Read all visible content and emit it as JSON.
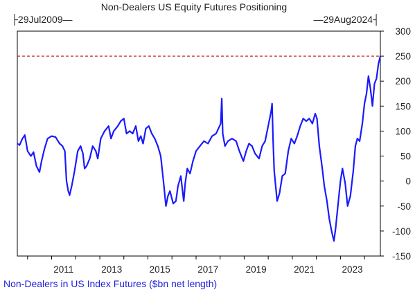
{
  "chart_data": {
    "type": "line",
    "title": "Non-Dealers US Equity Futures Positioning",
    "range_start_label": "29Jul2009",
    "range_end_label": "29Aug2024",
    "x_tick_labels": [
      "2011",
      "2013",
      "2015",
      "2017",
      "2019",
      "2021",
      "2023"
    ],
    "y_tick_labels": [
      "300",
      "250",
      "200",
      "150",
      "100",
      "50",
      "0",
      "-50",
      "-100",
      "-150"
    ],
    "ylim": [
      -150,
      300
    ],
    "xlim": [
      "2009-07-29",
      "2024-08-29"
    ],
    "grid": false,
    "reference_line": {
      "value": 250,
      "color": "#cc2222",
      "style": "dashed"
    },
    "legend_position": "bottom-left",
    "series": [
      {
        "name": "Non-Dealers in US Index Futures ($bn net length)",
        "color": "#1a1aff",
        "points": [
          [
            "2009-07-29",
            75
          ],
          [
            "2009-09-01",
            72
          ],
          [
            "2009-10-15",
            85
          ],
          [
            "2009-11-20",
            92
          ],
          [
            "2010-01-01",
            60
          ],
          [
            "2010-02-20",
            50
          ],
          [
            "2010-04-01",
            58
          ],
          [
            "2010-05-15",
            30
          ],
          [
            "2010-07-01",
            18
          ],
          [
            "2010-08-01",
            40
          ],
          [
            "2010-09-15",
            65
          ],
          [
            "2010-11-01",
            85
          ],
          [
            "2011-01-01",
            90
          ],
          [
            "2011-03-01",
            88
          ],
          [
            "2011-05-01",
            75
          ],
          [
            "2011-06-15",
            70
          ],
          [
            "2011-07-20",
            60
          ],
          [
            "2011-08-15",
            0
          ],
          [
            "2011-09-10",
            -20
          ],
          [
            "2011-10-01",
            -28
          ],
          [
            "2011-11-01",
            -10
          ],
          [
            "2011-12-15",
            20
          ],
          [
            "2012-02-01",
            60
          ],
          [
            "2012-03-15",
            70
          ],
          [
            "2012-04-20",
            55
          ],
          [
            "2012-05-15",
            25
          ],
          [
            "2012-06-15",
            30
          ],
          [
            "2012-08-01",
            45
          ],
          [
            "2012-09-15",
            70
          ],
          [
            "2012-11-01",
            60
          ],
          [
            "2012-12-01",
            45
          ],
          [
            "2013-01-15",
            85
          ],
          [
            "2013-03-15",
            100
          ],
          [
            "2013-05-15",
            110
          ],
          [
            "2013-06-20",
            85
          ],
          [
            "2013-08-01",
            100
          ],
          [
            "2013-10-01",
            110
          ],
          [
            "2013-11-15",
            120
          ],
          [
            "2014-01-01",
            125
          ],
          [
            "2014-02-10",
            95
          ],
          [
            "2014-04-01",
            100
          ],
          [
            "2014-05-15",
            95
          ],
          [
            "2014-07-01",
            110
          ],
          [
            "2014-08-10",
            80
          ],
          [
            "2014-09-15",
            90
          ],
          [
            "2014-10-20",
            75
          ],
          [
            "2014-12-01",
            105
          ],
          [
            "2015-01-15",
            110
          ],
          [
            "2015-03-01",
            95
          ],
          [
            "2015-04-15",
            85
          ],
          [
            "2015-06-01",
            70
          ],
          [
            "2015-07-15",
            50
          ],
          [
            "2015-08-25",
            0
          ],
          [
            "2015-10-01",
            -50
          ],
          [
            "2015-11-01",
            -30
          ],
          [
            "2015-12-01",
            -20
          ],
          [
            "2016-01-20",
            -45
          ],
          [
            "2016-03-01",
            -40
          ],
          [
            "2016-04-01",
            -10
          ],
          [
            "2016-05-15",
            10
          ],
          [
            "2016-06-28",
            -40
          ],
          [
            "2016-07-20",
            -5
          ],
          [
            "2016-08-20",
            25
          ],
          [
            "2016-10-01",
            15
          ],
          [
            "2016-11-15",
            40
          ],
          [
            "2017-01-01",
            60
          ],
          [
            "2017-03-01",
            70
          ],
          [
            "2017-05-01",
            80
          ],
          [
            "2017-07-01",
            75
          ],
          [
            "2017-09-01",
            90
          ],
          [
            "2017-11-01",
            95
          ],
          [
            "2018-01-10",
            115
          ],
          [
            "2018-01-26",
            165
          ],
          [
            "2018-02-10",
            95
          ],
          [
            "2018-03-15",
            70
          ],
          [
            "2018-05-01",
            80
          ],
          [
            "2018-07-01",
            85
          ],
          [
            "2018-09-01",
            80
          ],
          [
            "2018-10-20",
            60
          ],
          [
            "2018-12-20",
            40
          ],
          [
            "2019-02-01",
            60
          ],
          [
            "2019-03-15",
            75
          ],
          [
            "2019-05-01",
            70
          ],
          [
            "2019-06-15",
            55
          ],
          [
            "2019-08-15",
            45
          ],
          [
            "2019-10-01",
            70
          ],
          [
            "2019-11-15",
            80
          ],
          [
            "2020-01-01",
            110
          ],
          [
            "2020-02-15",
            140
          ],
          [
            "2020-02-28",
            155
          ],
          [
            "2020-03-15",
            80
          ],
          [
            "2020-04-01",
            20
          ],
          [
            "2020-05-01",
            -20
          ],
          [
            "2020-05-15",
            -40
          ],
          [
            "2020-06-20",
            -25
          ],
          [
            "2020-08-01",
            10
          ],
          [
            "2020-09-15",
            15
          ],
          [
            "2020-11-01",
            60
          ],
          [
            "2020-12-15",
            85
          ],
          [
            "2021-02-01",
            75
          ],
          [
            "2021-03-15",
            90
          ],
          [
            "2021-05-01",
            110
          ],
          [
            "2021-06-15",
            125
          ],
          [
            "2021-08-01",
            120
          ],
          [
            "2021-09-15",
            125
          ],
          [
            "2021-11-01",
            115
          ],
          [
            "2021-12-15",
            135
          ],
          [
            "2022-01-10",
            125
          ],
          [
            "2022-02-15",
            70
          ],
          [
            "2022-04-01",
            25
          ],
          [
            "2022-05-01",
            -10
          ],
          [
            "2022-06-10",
            -40
          ],
          [
            "2022-07-15",
            -75
          ],
          [
            "2022-08-20",
            -100
          ],
          [
            "2022-09-25",
            -120
          ],
          [
            "2022-10-20",
            -95
          ],
          [
            "2022-12-01",
            -40
          ],
          [
            "2023-01-01",
            0
          ],
          [
            "2023-02-01",
            25
          ],
          [
            "2023-03-15",
            -5
          ],
          [
            "2023-04-20",
            -50
          ],
          [
            "2023-06-01",
            -30
          ],
          [
            "2023-07-15",
            20
          ],
          [
            "2023-08-15",
            70
          ],
          [
            "2023-09-15",
            85
          ],
          [
            "2023-10-20",
            80
          ],
          [
            "2023-11-30",
            115
          ],
          [
            "2024-01-01",
            155
          ],
          [
            "2024-02-01",
            175
          ],
          [
            "2024-03-01",
            210
          ],
          [
            "2024-04-01",
            185
          ],
          [
            "2024-05-01",
            150
          ],
          [
            "2024-06-01",
            195
          ],
          [
            "2024-07-01",
            205
          ],
          [
            "2024-08-01",
            235
          ],
          [
            "2024-08-29",
            250
          ]
        ]
      }
    ]
  }
}
